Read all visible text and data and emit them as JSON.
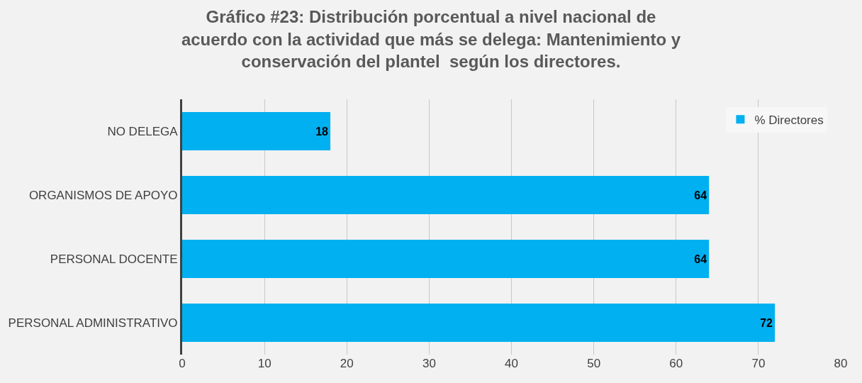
{
  "chart_data": {
    "type": "bar",
    "orientation": "horizontal",
    "title": "Gráfico #23: Distribución porcentual a nivel nacional de\nacuerdo con la actividad que más se delega: Mantenimiento y\nconservación del plantel  según los directores.",
    "categories": [
      "NO DELEGA",
      "ORGANISMOS DE APOYO",
      "PERSONAL DOCENTE",
      "PERSONAL ADMINISTRATIVO"
    ],
    "series": [
      {
        "name": "% Directores",
        "color": "#00b0f0",
        "values": [
          18,
          64,
          64,
          72
        ]
      }
    ],
    "xlim": [
      0,
      80
    ],
    "xticks": [
      0,
      10,
      20,
      30,
      40,
      50,
      60,
      70,
      80
    ],
    "grid": "x",
    "legend": "top right",
    "data_labels": true
  }
}
